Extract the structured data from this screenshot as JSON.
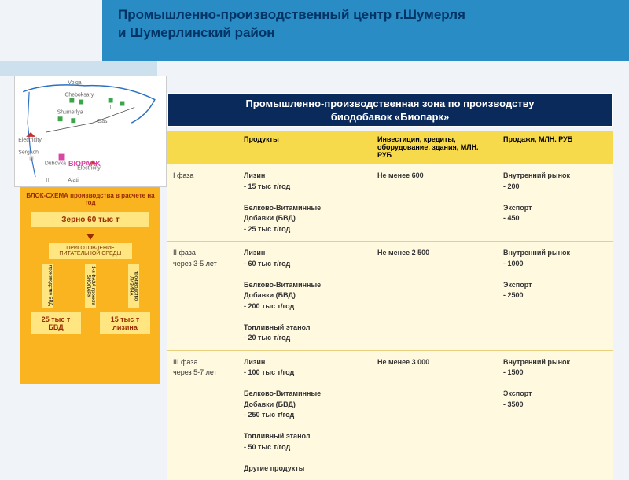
{
  "header": {
    "title_line1": "Промышленно-производственный центр г.Шумерля",
    "title_line2": "и Шумерлинский район"
  },
  "map": {
    "labels": {
      "volga": "Volga",
      "cheboksary": "Cheboksary",
      "shumerlya": "Shumerlya",
      "gas": "Gas",
      "electricity": "Electricity",
      "sergach": "Sergach",
      "dubovka": "Dubovka",
      "alatir": "Alatir",
      "biopark": "BIOPARK",
      "sura": "Sura"
    },
    "river_color": "#2a70c4",
    "marker_green": "#3aa64a",
    "marker_red": "#d02a2a",
    "marker_pink": "#d946a6"
  },
  "dark_header": {
    "line1": "Промышленно-производственная зона по производству",
    "line2": "биодобавок «Биопарк»"
  },
  "flow": {
    "title": "БЛОК-СХЕМА производства в расчете на год",
    "main": "Зерно 60 тыс т",
    "step1": "ПРИГОТОВЛЕНИЕ ПИТАТЕЛЬНОЙ СРЕДЫ",
    "v1": "производство БВД",
    "v2": "1-я ФАЗА проекта БИОПАРК",
    "v3": "производство ЛИЗИНА",
    "out1": "25 тыс т БВД",
    "out2": "15 тыс т лизина"
  },
  "table": {
    "headers": [
      "",
      "Продукты",
      "Инвестиции, кредиты, оборудование, здания, МЛН. РУБ",
      "Продажи, МЛН. РУБ"
    ],
    "rows": [
      {
        "phase": "I фаза",
        "phase_sub": "",
        "products": "Лизин\n- 15 тыс т/год\n\nБелково-Витаминные\nДобавки (БВД)\n- 25 тыс т/год",
        "invest": "Не менее 600",
        "sales": "Внутренний рынок\n- 200\n\nЭкспорт\n- 450"
      },
      {
        "phase": "II фаза",
        "phase_sub": "через 3-5 лет",
        "products": "Лизин\n- 60 тыс т/год\n\nБелково-Витаминные\nДобавки (БВД)\n- 200 тыс т/год\n\nТопливный этанол\n- 20 тыс т/год",
        "invest": "Не менее 2 500",
        "sales": "Внутренний рынок\n- 1000\n\nЭкспорт\n- 2500"
      },
      {
        "phase": "III фаза",
        "phase_sub": "через 5-7 лет",
        "products": "Лизин\n- 100 тыс т/год\n\nБелково-Витаминные\nДобавки (БВД)\n- 250 тыс т/год\n\nТопливный этанол\n- 50 тыс т/год\n\nДругие продукты",
        "invest": "Не менее 3 000",
        "sales": "Внутренний рынок\n- 1500\n\nЭкспорт\n- 3500"
      }
    ],
    "header_bg": "#f7d94c",
    "body_bg": "#fff9e0"
  }
}
